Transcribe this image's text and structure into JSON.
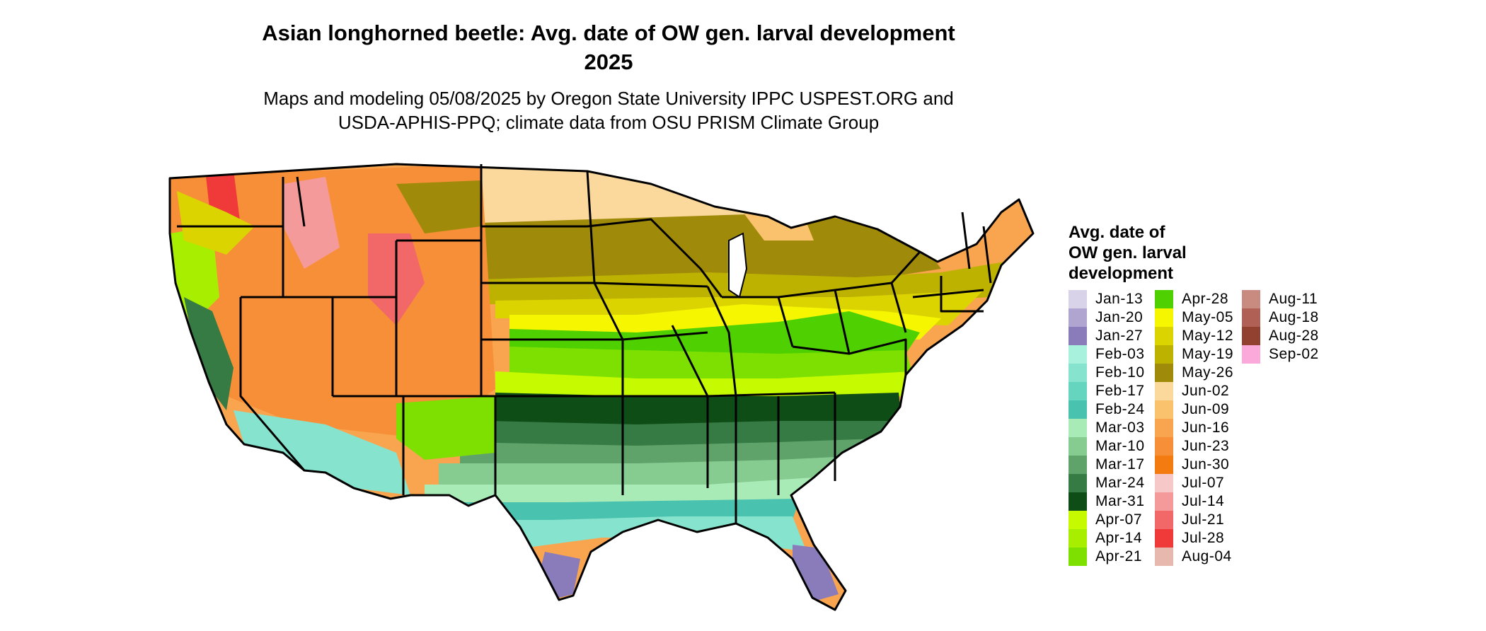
{
  "title": [
    "Asian longhorned beetle: Avg. date of OW gen. larval development",
    "2025"
  ],
  "subtitle": [
    "Maps and modeling 05/08/2025 by Oregon State University IPPC USPEST.ORG and",
    "USDA-APHIS-PPQ; climate data from OSU PRISM Climate Group"
  ],
  "legend": {
    "title": [
      "Avg. date of",
      "OW gen. larval",
      "development"
    ],
    "columns": [
      [
        {
          "label": "Jan-13",
          "color": "#d9d3ea"
        },
        {
          "label": "Jan-20",
          "color": "#b0a5d0"
        },
        {
          "label": "Jan-27",
          "color": "#8a7bbb"
        },
        {
          "label": "Feb-03",
          "color": "#a8f1dd"
        },
        {
          "label": "Feb-10",
          "color": "#86e3ce"
        },
        {
          "label": "Feb-17",
          "color": "#66d5c0"
        },
        {
          "label": "Feb-24",
          "color": "#49c2af"
        },
        {
          "label": "Mar-03",
          "color": "#a9ebb6"
        },
        {
          "label": "Mar-10",
          "color": "#86cc91"
        },
        {
          "label": "Mar-17",
          "color": "#5fa36a"
        },
        {
          "label": "Mar-24",
          "color": "#367a44"
        },
        {
          "label": "Mar-31",
          "color": "#0f4d17"
        },
        {
          "label": "Apr-07",
          "color": "#c6fa00"
        },
        {
          "label": "Apr-14",
          "color": "#a8ee00"
        },
        {
          "label": "Apr-21",
          "color": "#7de000"
        }
      ],
      [
        {
          "label": "Apr-28",
          "color": "#4fd000"
        },
        {
          "label": "May-05",
          "color": "#f6f600"
        },
        {
          "label": "May-12",
          "color": "#dcd400"
        },
        {
          "label": "May-19",
          "color": "#bdb200"
        },
        {
          "label": "May-26",
          "color": "#a08a0a"
        },
        {
          "label": "Jun-02",
          "color": "#fbd89c"
        },
        {
          "label": "Jun-09",
          "color": "#fbc26e"
        },
        {
          "label": "Jun-16",
          "color": "#f9a550"
        },
        {
          "label": "Jun-23",
          "color": "#f78f38"
        },
        {
          "label": "Jun-30",
          "color": "#f47b10"
        },
        {
          "label": "Jul-07",
          "color": "#f7c8c8"
        },
        {
          "label": "Jul-14",
          "color": "#f59a9a"
        },
        {
          "label": "Jul-21",
          "color": "#f26868"
        },
        {
          "label": "Jul-28",
          "color": "#f03a3a"
        },
        {
          "label": "Aug-04",
          "color": "#e6b8ae"
        }
      ],
      [
        {
          "label": "Aug-11",
          "color": "#c98a80"
        },
        {
          "label": "Aug-18",
          "color": "#b06055"
        },
        {
          "label": "Aug-28",
          "color": "#92402f"
        },
        {
          "label": "Sep-02",
          "color": "#fba8da"
        }
      ]
    ]
  }
}
